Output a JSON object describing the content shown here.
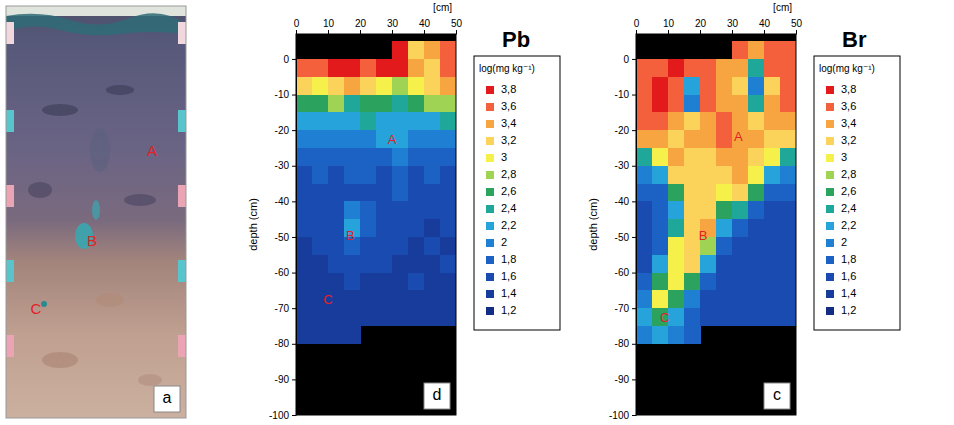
{
  "photo": {
    "panel_label": "a",
    "labels": [
      "A",
      "B",
      "C"
    ]
  },
  "chart_data": [
    {
      "type": "heatmap",
      "title": "Pb",
      "panel_label": "d",
      "x_label": "[cm]",
      "y_label": "depth (cm)",
      "xlim": [
        0,
        50
      ],
      "ylim": [
        -100,
        7
      ],
      "xticks": [
        0,
        10,
        20,
        30,
        40,
        50
      ],
      "yticks": [
        0,
        -10,
        -20,
        -30,
        -40,
        -50,
        -60,
        -70,
        -80,
        -90,
        -100
      ],
      "x_bins": [
        0,
        5,
        10,
        15,
        20,
        25,
        30,
        35,
        40,
        45,
        50
      ],
      "y_bins": [
        5,
        0,
        -5,
        -10,
        -15,
        -20,
        -25,
        -30,
        -35,
        -40,
        -45,
        -50,
        -55,
        -60,
        -65,
        -70,
        -75,
        -80
      ],
      "cells": [
        [
          null,
          null,
          null,
          null,
          null,
          null,
          3.8,
          3.2,
          3.4,
          3.6
        ],
        [
          3.6,
          3.6,
          3.8,
          3.8,
          3.6,
          3.8,
          3.8,
          3.4,
          3.2,
          3.6
        ],
        [
          3.2,
          3.0,
          3.2,
          3.4,
          3.2,
          3.0,
          2.8,
          3.0,
          3.2,
          3.4
        ],
        [
          2.6,
          2.6,
          2.8,
          2.4,
          2.6,
          2.6,
          2.4,
          2.6,
          2.8,
          2.8
        ],
        [
          2.2,
          2.2,
          2.2,
          2.2,
          2.4,
          2.2,
          2.2,
          2.2,
          2.2,
          2.4
        ],
        [
          2.0,
          2.0,
          2.0,
          2.0,
          2.0,
          2.2,
          2.2,
          2.0,
          2.0,
          2.0
        ],
        [
          1.8,
          1.8,
          1.8,
          1.8,
          1.8,
          1.8,
          2.0,
          1.8,
          1.8,
          1.8
        ],
        [
          1.6,
          1.8,
          1.6,
          1.8,
          1.8,
          1.6,
          1.8,
          1.6,
          1.8,
          1.6
        ],
        [
          1.6,
          1.6,
          1.6,
          1.6,
          1.6,
          1.6,
          1.8,
          1.6,
          1.6,
          1.6
        ],
        [
          1.6,
          1.6,
          1.6,
          2.0,
          1.8,
          1.6,
          1.6,
          1.6,
          1.6,
          1.6
        ],
        [
          1.6,
          1.6,
          1.6,
          2.2,
          1.8,
          1.6,
          1.6,
          1.6,
          1.4,
          1.6
        ],
        [
          1.4,
          1.6,
          1.6,
          1.8,
          1.6,
          1.6,
          1.6,
          1.4,
          1.6,
          1.4
        ],
        [
          1.4,
          1.4,
          1.6,
          1.6,
          1.6,
          1.6,
          1.4,
          1.4,
          1.4,
          1.6
        ],
        [
          1.4,
          1.4,
          1.4,
          1.6,
          1.4,
          1.4,
          1.4,
          1.6,
          1.4,
          1.4
        ],
        [
          1.4,
          1.4,
          1.4,
          1.4,
          1.4,
          1.4,
          1.4,
          1.4,
          1.4,
          1.4
        ],
        [
          1.4,
          1.4,
          1.4,
          1.4,
          1.4,
          1.4,
          1.4,
          1.4,
          1.4,
          1.4
        ],
        [
          1.4,
          1.4,
          1.4,
          1.4,
          null,
          null,
          null,
          null,
          null,
          null
        ]
      ],
      "colorbar": {
        "title": "log(mg kg⁻¹)",
        "ticks": [
          {
            "value": 3.8,
            "label": "3,8"
          },
          {
            "value": 3.6,
            "label": "3,6"
          },
          {
            "value": 3.4,
            "label": "3,4"
          },
          {
            "value": 3.2,
            "label": "3,2"
          },
          3,
          {
            "value": 2.8,
            "label": "2,8"
          },
          {
            "value": 2.6,
            "label": "2,6"
          },
          {
            "value": 2.4,
            "label": "2,4"
          },
          {
            "value": 2.2,
            "label": "2,2"
          },
          2,
          {
            "value": 1.8,
            "label": "1,8"
          },
          {
            "value": 1.6,
            "label": "1,6"
          },
          {
            "value": 1.4,
            "label": "1,4"
          },
          {
            "value": 1.2,
            "label": "1,2"
          }
        ],
        "colors": [
          "#e31a1c",
          "#f4603c",
          "#f7a541",
          "#fbd35a",
          "#f6f14a",
          "#9fd353",
          "#2ca25f",
          "#1fa79a",
          "#27a3dc",
          "#1f7fd3",
          "#1c62c4",
          "#1a4bb0",
          "#173c9c",
          "#132c84"
        ]
      },
      "annotations": [
        {
          "text": "A",
          "x": 30,
          "y": -23
        },
        {
          "text": "B",
          "x": 17,
          "y": -50
        },
        {
          "text": "C",
          "x": 10,
          "y": -68
        }
      ]
    },
    {
      "type": "heatmap",
      "title": "Br",
      "panel_label": "c",
      "x_label": "[cm]",
      "y_label": "depth (cm)",
      "xlim": [
        0,
        50
      ],
      "ylim": [
        -100,
        7
      ],
      "xticks": [
        0,
        10,
        20,
        30,
        40,
        50
      ],
      "yticks": [
        0,
        -10,
        -20,
        -30,
        -40,
        -50,
        -60,
        -70,
        -80,
        -90,
        -100
      ],
      "x_bins": [
        0,
        5,
        10,
        15,
        20,
        25,
        30,
        35,
        40,
        45,
        50
      ],
      "y_bins": [
        5,
        0,
        -5,
        -10,
        -15,
        -20,
        -25,
        -30,
        -35,
        -40,
        -45,
        -50,
        -55,
        -60,
        -65,
        -70,
        -75,
        -80
      ],
      "cells": [
        [
          null,
          null,
          null,
          null,
          null,
          null,
          3.6,
          3.4,
          3.6,
          3.6
        ],
        [
          3.6,
          3.6,
          3.8,
          3.6,
          3.6,
          3.4,
          3.4,
          2.4,
          3.6,
          3.6
        ],
        [
          3.6,
          3.8,
          3.6,
          2.2,
          3.6,
          3.4,
          3.2,
          2.0,
          3.2,
          3.6
        ],
        [
          3.6,
          3.8,
          3.6,
          2.0,
          3.6,
          3.4,
          3.4,
          2.4,
          3.4,
          3.6
        ],
        [
          3.6,
          3.6,
          3.4,
          3.2,
          3.4,
          3.6,
          3.4,
          3.2,
          3.4,
          3.4
        ],
        [
          3.4,
          3.4,
          3.2,
          3.4,
          3.4,
          3.6,
          3.4,
          3.4,
          3.2,
          3.2
        ],
        [
          2.4,
          3.0,
          3.4,
          3.2,
          3.2,
          3.4,
          3.4,
          3.2,
          3.0,
          2.4
        ],
        [
          2.0,
          2.2,
          3.2,
          3.2,
          3.2,
          3.2,
          3.4,
          3.0,
          2.2,
          2.0
        ],
        [
          1.8,
          1.8,
          2.6,
          3.2,
          3.2,
          3.0,
          3.2,
          2.6,
          1.8,
          1.8
        ],
        [
          1.6,
          1.8,
          2.2,
          3.2,
          3.2,
          2.6,
          2.4,
          1.8,
          1.6,
          1.6
        ],
        [
          1.6,
          1.8,
          2.4,
          3.2,
          3.4,
          2.2,
          1.8,
          1.6,
          1.6,
          1.6
        ],
        [
          1.6,
          1.8,
          3.0,
          3.2,
          2.8,
          1.8,
          1.6,
          1.6,
          1.6,
          1.6
        ],
        [
          1.6,
          2.2,
          3.0,
          3.2,
          2.2,
          1.6,
          1.6,
          1.6,
          1.6,
          1.6
        ],
        [
          1.8,
          2.6,
          3.0,
          2.6,
          1.8,
          1.6,
          1.6,
          1.6,
          1.6,
          1.6
        ],
        [
          2.0,
          3.0,
          2.6,
          2.0,
          1.6,
          1.6,
          1.6,
          1.6,
          1.6,
          1.6
        ],
        [
          2.2,
          2.6,
          2.2,
          1.8,
          1.6,
          1.6,
          1.6,
          1.6,
          1.6,
          1.6
        ],
        [
          2.0,
          2.2,
          2.0,
          1.8,
          null,
          null,
          null,
          null,
          null,
          null
        ]
      ],
      "colorbar": {
        "title": "log(mg kg⁻¹)",
        "ticks": [
          {
            "value": 3.8,
            "label": "3,8"
          },
          {
            "value": 3.6,
            "label": "3,6"
          },
          {
            "value": 3.4,
            "label": "3,4"
          },
          {
            "value": 3.2,
            "label": "3,2"
          },
          3,
          {
            "value": 2.8,
            "label": "2,8"
          },
          {
            "value": 2.6,
            "label": "2,6"
          },
          {
            "value": 2.4,
            "label": "2,4"
          },
          {
            "value": 2.2,
            "label": "2,2"
          },
          2,
          {
            "value": 1.8,
            "label": "1,8"
          },
          {
            "value": 1.6,
            "label": "1,6"
          },
          {
            "value": 1.4,
            "label": "1,4"
          },
          {
            "value": 1.2,
            "label": "1,2"
          }
        ],
        "colors": [
          "#e31a1c",
          "#f4603c",
          "#f7a541",
          "#fbd35a",
          "#f6f14a",
          "#9fd353",
          "#2ca25f",
          "#1fa79a",
          "#27a3dc",
          "#1f7fd3",
          "#1c62c4",
          "#1a4bb0",
          "#173c9c",
          "#132c84"
        ]
      },
      "annotations": [
        {
          "text": "A",
          "x": 32,
          "y": -22
        },
        {
          "text": "B",
          "x": 21,
          "y": -50
        },
        {
          "text": "C",
          "x": 9,
          "y": -73
        }
      ]
    }
  ]
}
